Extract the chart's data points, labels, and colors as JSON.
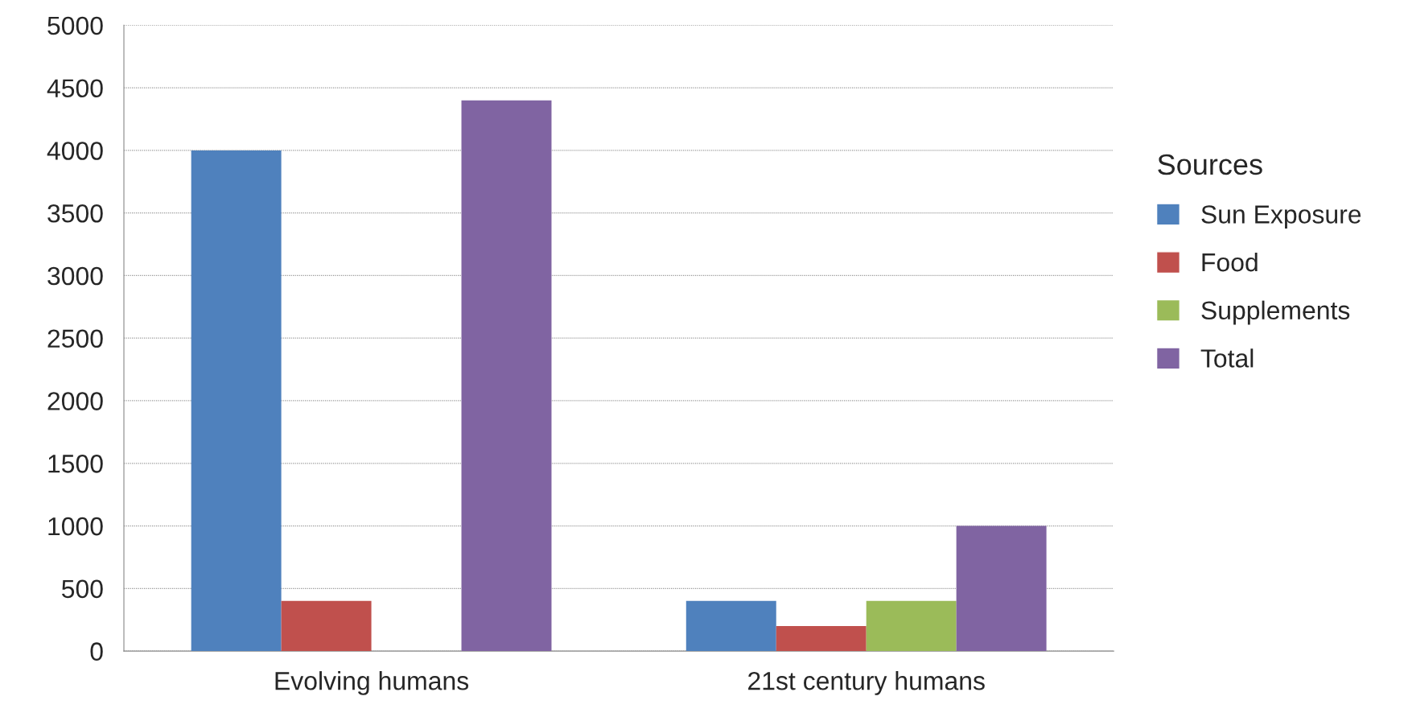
{
  "chart_data": {
    "type": "bar",
    "legend_title": "Sources",
    "categories": [
      "Evolving humans",
      "21st century humans"
    ],
    "series": [
      {
        "name": "Sun Exposure",
        "color": "#4f81bd",
        "values": [
          4000,
          400
        ]
      },
      {
        "name": "Food",
        "color": "#c0504d",
        "values": [
          400,
          200
        ]
      },
      {
        "name": "Supplements",
        "color": "#9bbb59",
        "values": [
          null,
          400
        ]
      },
      {
        "name": "Total",
        "color": "#8064a2",
        "values": [
          4400,
          1000
        ]
      }
    ],
    "ylim": [
      0,
      5000
    ],
    "yticks": [
      0,
      500,
      1000,
      1500,
      2000,
      2500,
      3000,
      3500,
      4000,
      4500,
      5000
    ],
    "grid": "y",
    "legend": "right"
  }
}
